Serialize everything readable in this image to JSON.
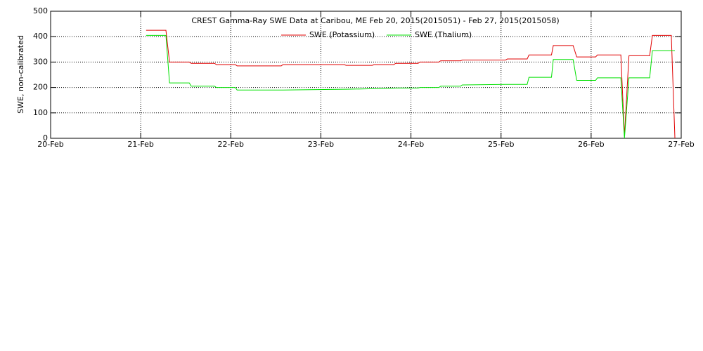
{
  "chart_data": {
    "type": "line",
    "title": "CREST Gamma-Ray SWE Data at Caribou, ME   Feb 20, 2015(2015051) - Feb 27, 2015(2015058)",
    "y_label": "SWE, non-calibrated",
    "xlim": [
      0,
      7
    ],
    "xticks": [
      {
        "value": 0,
        "label": "20-Feb"
      },
      {
        "value": 1,
        "label": "21-Feb"
      },
      {
        "value": 2,
        "label": "22-Feb"
      },
      {
        "value": 3,
        "label": "23-Feb"
      },
      {
        "value": 4,
        "label": "24-Feb"
      },
      {
        "value": 5,
        "label": "25-Feb"
      },
      {
        "value": 6,
        "label": "26-Feb"
      },
      {
        "value": 7,
        "label": "27-Feb"
      }
    ],
    "ylim": [
      0,
      500
    ],
    "yticks": [
      0,
      100,
      200,
      300,
      400,
      500
    ],
    "grid": true,
    "x": [
      1.06,
      1.28,
      1.32,
      1.54,
      1.56,
      1.82,
      1.84,
      2.05,
      2.07,
      2.56,
      2.58,
      3.26,
      3.28,
      3.57,
      3.59,
      3.81,
      3.83,
      4.08,
      4.1,
      4.31,
      4.33,
      4.55,
      4.57,
      5.05,
      5.07,
      5.29,
      5.31,
      5.56,
      5.58,
      5.8,
      5.84,
      6.05,
      6.07,
      6.33,
      6.37,
      6.42,
      6.65,
      6.68,
      6.89,
      6.93
    ],
    "series": [
      {
        "name": "SWE (Potassium)",
        "color": "#e00000",
        "values": [
          425,
          425,
          300,
          300,
          295,
          295,
          290,
          290,
          285,
          285,
          290,
          290,
          287,
          287,
          290,
          290,
          295,
          295,
          300,
          300,
          305,
          305,
          308,
          308,
          312,
          312,
          328,
          328,
          365,
          365,
          320,
          320,
          328,
          328,
          10,
          325,
          325,
          405,
          405,
          0
        ]
      },
      {
        "name": "SWE (Thalium)",
        "color": "#00e000",
        "values": [
          405,
          405,
          218,
          218,
          205,
          205,
          200,
          200,
          190,
          190,
          190,
          193,
          193,
          195,
          195,
          197,
          198,
          198,
          200,
          200,
          205,
          205,
          210,
          212,
          212,
          212,
          240,
          240,
          310,
          310,
          228,
          228,
          238,
          238,
          0,
          238,
          238,
          345,
          345,
          345
        ]
      }
    ]
  }
}
